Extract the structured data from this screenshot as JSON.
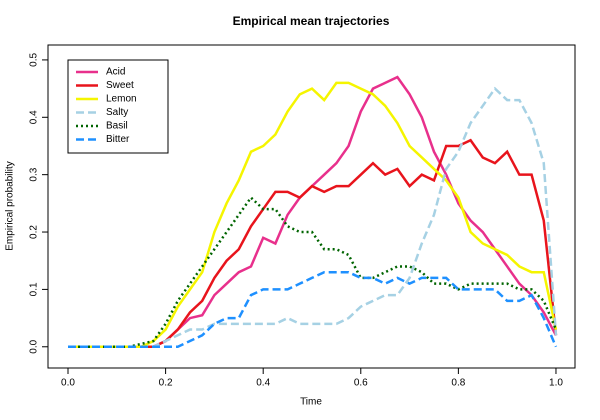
{
  "chart_data": {
    "type": "line",
    "title": "Empirical mean trajectories",
    "x_label": "Time",
    "y_label": "Empirical probability",
    "x": [
      0,
      0.025,
      0.05,
      0.075,
      0.1,
      0.125,
      0.15,
      0.175,
      0.2,
      0.225,
      0.25,
      0.275,
      0.3,
      0.325,
      0.35,
      0.375,
      0.4,
      0.425,
      0.45,
      0.475,
      0.5,
      0.525,
      0.55,
      0.575,
      0.6,
      0.625,
      0.65,
      0.675,
      0.7,
      0.725,
      0.75,
      0.775,
      0.8,
      0.825,
      0.85,
      0.875,
      0.9,
      0.925,
      0.95,
      0.975,
      1
    ],
    "series": [
      {
        "name": "Acid",
        "color": "#e8308c",
        "line_style": "solid",
        "values": [
          0,
          0,
          0,
          0,
          0,
          0,
          0,
          0,
          0.01,
          0.03,
          0.05,
          0.055,
          0.09,
          0.11,
          0.13,
          0.14,
          0.19,
          0.18,
          0.23,
          0.26,
          0.28,
          0.3,
          0.32,
          0.35,
          0.41,
          0.45,
          0.46,
          0.47,
          0.44,
          0.4,
          0.34,
          0.3,
          0.25,
          0.22,
          0.2,
          0.17,
          0.14,
          0.11,
          0.09,
          0.06,
          0.02
        ]
      },
      {
        "name": "Sweet",
        "color": "#e8141c",
        "line_style": "solid",
        "values": [
          0,
          0,
          0,
          0,
          0,
          0,
          0,
          0,
          0.01,
          0.03,
          0.06,
          0.08,
          0.12,
          0.15,
          0.17,
          0.21,
          0.24,
          0.27,
          0.27,
          0.26,
          0.28,
          0.27,
          0.28,
          0.28,
          0.3,
          0.32,
          0.3,
          0.31,
          0.28,
          0.3,
          0.29,
          0.35,
          0.35,
          0.36,
          0.33,
          0.32,
          0.34,
          0.3,
          0.3,
          0.22,
          0.02
        ]
      },
      {
        "name": "Lemon",
        "color": "#f5f500",
        "line_style": "solid",
        "values": [
          0,
          0,
          0,
          0,
          0,
          0,
          0,
          0.01,
          0.03,
          0.07,
          0.1,
          0.13,
          0.2,
          0.25,
          0.29,
          0.34,
          0.35,
          0.37,
          0.41,
          0.44,
          0.45,
          0.43,
          0.46,
          0.46,
          0.45,
          0.44,
          0.42,
          0.39,
          0.35,
          0.33,
          0.31,
          0.29,
          0.26,
          0.2,
          0.18,
          0.17,
          0.16,
          0.14,
          0.13,
          0.13,
          0.03
        ]
      },
      {
        "name": "Salty",
        "color": "#a6d1e4",
        "line_style": "dashed",
        "values": [
          0,
          0,
          0,
          0,
          0,
          0,
          0,
          0,
          0.01,
          0.02,
          0.03,
          0.03,
          0.04,
          0.04,
          0.04,
          0.04,
          0.04,
          0.04,
          0.05,
          0.04,
          0.04,
          0.04,
          0.04,
          0.05,
          0.07,
          0.08,
          0.09,
          0.09,
          0.12,
          0.18,
          0.23,
          0.31,
          0.34,
          0.39,
          0.42,
          0.45,
          0.43,
          0.43,
          0.39,
          0.32,
          0.02
        ]
      },
      {
        "name": "Basil",
        "color": "#006400",
        "line_style": "dotted",
        "values": [
          0,
          0,
          0,
          0,
          0,
          0,
          0.005,
          0.01,
          0.04,
          0.08,
          0.11,
          0.14,
          0.17,
          0.2,
          0.23,
          0.26,
          0.24,
          0.24,
          0.21,
          0.2,
          0.2,
          0.17,
          0.17,
          0.16,
          0.12,
          0.12,
          0.13,
          0.14,
          0.14,
          0.13,
          0.11,
          0.11,
          0.1,
          0.11,
          0.11,
          0.11,
          0.11,
          0.1,
          0.1,
          0.08,
          0.03
        ]
      },
      {
        "name": "Bitter",
        "color": "#1e90ff",
        "line_style": "dashed",
        "values": [
          0,
          0,
          0,
          0,
          0,
          0,
          0,
          0,
          0,
          0,
          0.01,
          0.02,
          0.04,
          0.05,
          0.05,
          0.09,
          0.1,
          0.1,
          0.1,
          0.11,
          0.12,
          0.13,
          0.13,
          0.13,
          0.12,
          0.12,
          0.11,
          0.12,
          0.11,
          0.12,
          0.12,
          0.12,
          0.1,
          0.1,
          0.1,
          0.1,
          0.08,
          0.08,
          0.09,
          0.05,
          0
        ]
      }
    ],
    "xlim": [
      -0.041,
      1.039
    ],
    "ylim": [
      -0.037,
      0.526
    ],
    "xticks": [
      {
        "value": 0,
        "label": "0.0"
      },
      {
        "value": 0.2,
        "label": "0.2"
      },
      {
        "value": 0.4,
        "label": "0.4"
      },
      {
        "value": 0.6,
        "label": "0.6"
      },
      {
        "value": 0.8,
        "label": "0.8"
      },
      {
        "value": 1,
        "label": "1.0"
      }
    ],
    "yticks": [
      {
        "value": 0,
        "label": "0.0"
      },
      {
        "value": 0.1,
        "label": "0.1"
      },
      {
        "value": 0.2,
        "label": "0.2"
      },
      {
        "value": 0.3,
        "label": "0.3"
      },
      {
        "value": 0.4,
        "label": "0.4"
      },
      {
        "value": 0.5,
        "label": "0.5"
      }
    ],
    "legend": "top-left"
  }
}
